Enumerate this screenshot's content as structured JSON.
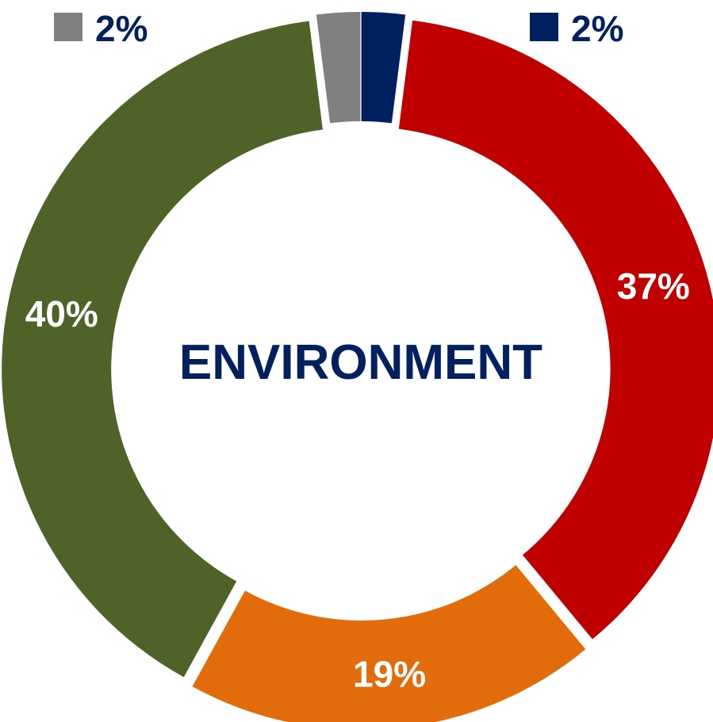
{
  "chart_data": {
    "type": "pie",
    "variant": "donut",
    "title": "ENVIRONMENT",
    "slices": [
      {
        "value": 2,
        "label": "2%",
        "color": "#002060",
        "label_position": "legend"
      },
      {
        "value": 37,
        "label": "37%",
        "color": "#C00000",
        "label_position": "inside"
      },
      {
        "value": 19,
        "label": "19%",
        "color": "#E36C0A",
        "label_position": "inside"
      },
      {
        "value": 40,
        "label": "40%",
        "color": "#4F6228",
        "label_position": "inside"
      },
      {
        "value": 2,
        "label": "2%",
        "color": "#808080",
        "label_position": "legend"
      }
    ],
    "legend_placement": "top",
    "title_color": "#002060"
  }
}
